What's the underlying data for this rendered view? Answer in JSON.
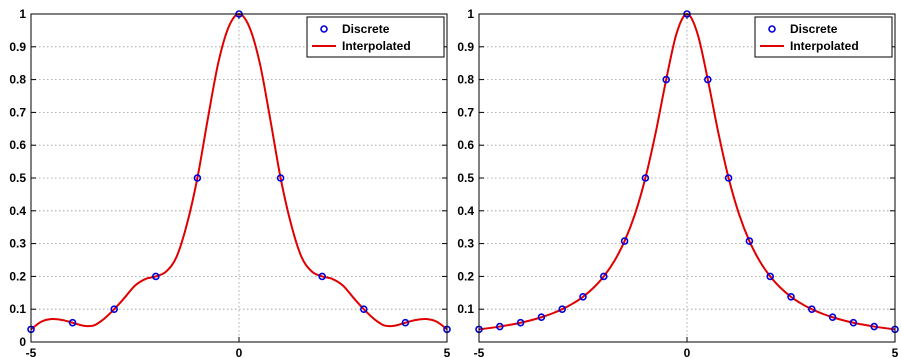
{
  "chart_data": [
    {
      "type": "line",
      "title": "",
      "xlabel": "",
      "ylabel": "",
      "xlim": [
        -5,
        5
      ],
      "ylim": [
        0,
        1
      ],
      "xticks": [
        -5,
        0,
        5
      ],
      "yticks": [
        0,
        0.1,
        0.2,
        0.3,
        0.4,
        0.5,
        0.6,
        0.7,
        0.8,
        0.9,
        1
      ],
      "ytick_labels": [
        "0",
        "0.1",
        "0.2",
        "0.3",
        "0.4",
        "0.5",
        "0.6",
        "0.7",
        "0.8",
        "0.9",
        "1"
      ],
      "grid": true,
      "legend_position": "top-right",
      "series": [
        {
          "name": "Discrete",
          "style": "markers",
          "color": "#0000dd",
          "x": [
            -5,
            -4,
            -3,
            -2,
            -1,
            0,
            1,
            2,
            3,
            4,
            5
          ],
          "y": [
            0.0385,
            0.0588,
            0.1,
            0.2,
            0.5,
            1,
            0.5,
            0.2,
            0.1,
            0.0588,
            0.0385
          ]
        },
        {
          "name": "Interpolated",
          "style": "line",
          "color": "#e00000",
          "x": [
            -5,
            -4.75,
            -4.5,
            -4.25,
            -4,
            -3.75,
            -3.5,
            -3.25,
            -3,
            -2.75,
            -2.5,
            -2.25,
            -2,
            -1.75,
            -1.5,
            -1.25,
            -1,
            -0.75,
            -0.5,
            -0.25,
            0,
            0.25,
            0.5,
            0.75,
            1,
            1.25,
            1.5,
            1.75,
            2,
            2.25,
            2.5,
            2.75,
            3,
            3.25,
            3.5,
            3.75,
            4,
            4.25,
            4.5,
            4.75,
            5
          ],
          "y": [
            0.0385,
            0.062,
            0.07,
            0.067,
            0.0588,
            0.05,
            0.05,
            0.07,
            0.1,
            0.135,
            0.172,
            0.192,
            0.2,
            0.215,
            0.26,
            0.36,
            0.5,
            0.68,
            0.85,
            0.96,
            1,
            0.96,
            0.85,
            0.68,
            0.5,
            0.36,
            0.26,
            0.215,
            0.2,
            0.192,
            0.172,
            0.135,
            0.1,
            0.07,
            0.05,
            0.05,
            0.0588,
            0.067,
            0.07,
            0.062,
            0.0385
          ]
        }
      ]
    },
    {
      "type": "line",
      "title": "",
      "xlabel": "",
      "ylabel": "",
      "xlim": [
        -5,
        5
      ],
      "ylim": [
        0,
        1
      ],
      "xticks": [
        -5,
        0,
        5
      ],
      "yticks": [
        0,
        0.1,
        0.2,
        0.3,
        0.4,
        0.5,
        0.6,
        0.7,
        0.8,
        0.9,
        1
      ],
      "ytick_labels": [
        "",
        "0.1",
        "0.2",
        "0.3",
        "0.4",
        "0.5",
        "0.6",
        "0.7",
        "0.8",
        "0.9",
        "1"
      ],
      "grid": true,
      "legend_position": "top-right",
      "series": [
        {
          "name": "Discrete",
          "style": "markers",
          "color": "#0000dd",
          "x": [
            -5,
            -4.5,
            -4,
            -3.5,
            -3,
            -2.5,
            -2,
            -1.5,
            -1,
            -0.5,
            0,
            0.5,
            1,
            1.5,
            2,
            2.5,
            3,
            3.5,
            4,
            4.5,
            5
          ],
          "y": [
            0.0385,
            0.0471,
            0.0588,
            0.0755,
            0.1,
            0.1379,
            0.2,
            0.3077,
            0.5,
            0.8,
            1,
            0.8,
            0.5,
            0.3077,
            0.2,
            0.1379,
            0.1,
            0.0755,
            0.0588,
            0.0471,
            0.0385
          ]
        },
        {
          "name": "Interpolated",
          "style": "line",
          "color": "#e00000",
          "x": [
            -5,
            -4.75,
            -4.5,
            -4.25,
            -4,
            -3.75,
            -3.5,
            -3.25,
            -3,
            -2.75,
            -2.5,
            -2.25,
            -2,
            -1.75,
            -1.5,
            -1.25,
            -1,
            -0.75,
            -0.5,
            -0.25,
            0,
            0.25,
            0.5,
            0.75,
            1,
            1.25,
            1.5,
            1.75,
            2,
            2.25,
            2.5,
            2.75,
            3,
            3.25,
            3.5,
            3.75,
            4,
            4.25,
            4.5,
            4.75,
            5
          ],
          "y": [
            0.0385,
            0.0425,
            0.0471,
            0.0525,
            0.0588,
            0.0664,
            0.0755,
            0.0865,
            0.1,
            0.1168,
            0.1379,
            0.165,
            0.2,
            0.2462,
            0.3077,
            0.3902,
            0.5,
            0.64,
            0.8,
            0.9412,
            1,
            0.9412,
            0.8,
            0.64,
            0.5,
            0.3902,
            0.3077,
            0.2462,
            0.2,
            0.165,
            0.1379,
            0.1168,
            0.1,
            0.0865,
            0.0755,
            0.0664,
            0.0588,
            0.0525,
            0.0471,
            0.0425,
            0.0385
          ]
        }
      ]
    }
  ]
}
